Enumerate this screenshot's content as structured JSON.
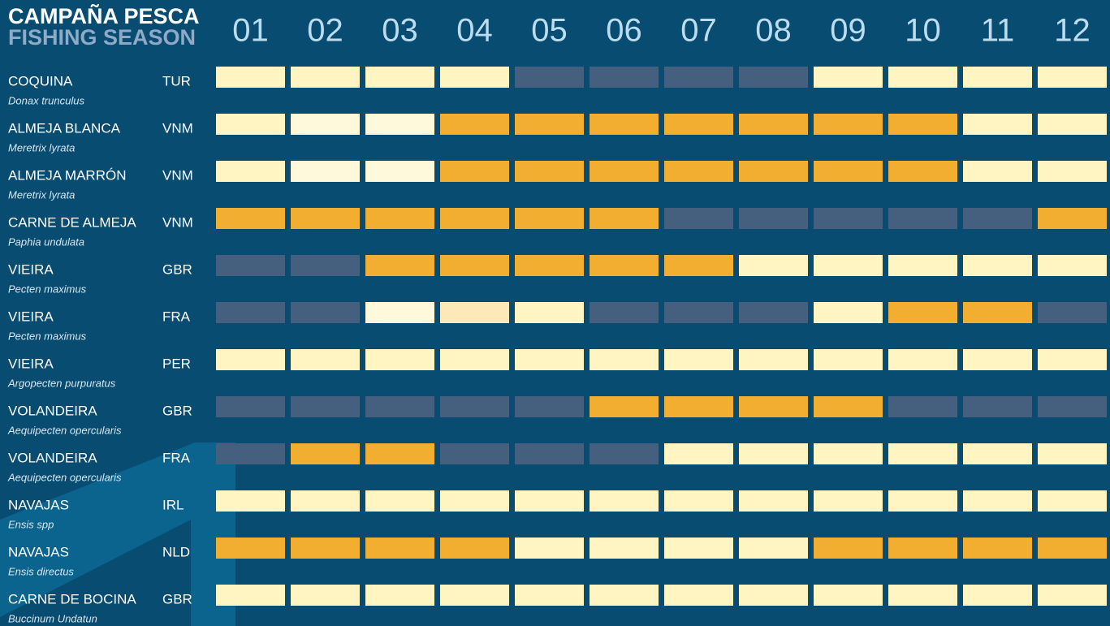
{
  "header": {
    "title": "CAMPAÑA PESCA",
    "subtitle": "FISHING SEASON"
  },
  "months": [
    "01",
    "02",
    "03",
    "04",
    "05",
    "06",
    "07",
    "08",
    "09",
    "10",
    "11",
    "12"
  ],
  "rows": [
    {
      "name": "COQUINA",
      "latin": "Donax trunculus",
      "code": "TUR",
      "cells": [
        "#fff5c2",
        "#fff5c2",
        "#fff5c2",
        "#fff5c2",
        "#45607f",
        "#45607f",
        "#45607f",
        "#45607f",
        "#fff5c2",
        "#fff5c2",
        "#fff5c2",
        "#fff5c2"
      ]
    },
    {
      "name": "ALMEJA BLANCA",
      "latin": "Meretrix lyrata",
      "code": "VNM",
      "cells": [
        "#fff5c2",
        "#fff9dc",
        "#fff9dc",
        "#f1ae30",
        "#f1ae30",
        "#f1ae30",
        "#f1ae30",
        "#f1ae30",
        "#f1ae30",
        "#f1ae30",
        "#fff5c2",
        "#fff5c2"
      ]
    },
    {
      "name": "ALMEJA MARRÓN",
      "latin": "Meretrix lyrata",
      "code": "VNM",
      "cells": [
        "#fff5c2",
        "#fff9dc",
        "#fff9dc",
        "#f1ae30",
        "#f1ae30",
        "#f1ae30",
        "#f1ae30",
        "#f1ae30",
        "#f1ae30",
        "#f1ae30",
        "#fff5c2",
        "#fff5c2"
      ]
    },
    {
      "name": "CARNE DE ALMEJA",
      "latin": "Paphia undulata",
      "code": "VNM",
      "cells": [
        "#f1ae30",
        "#f1ae30",
        "#f1ae30",
        "#f1ae30",
        "#f1ae30",
        "#f1ae30",
        "#45607f",
        "#45607f",
        "#45607f",
        "#45607f",
        "#45607f",
        "#f1ae30"
      ]
    },
    {
      "name": "VIEIRA",
      "latin": "Pecten maximus",
      "code": "GBR",
      "cells": [
        "#45607f",
        "#45607f",
        "#f1ae30",
        "#f1ae30",
        "#f1ae30",
        "#f1ae30",
        "#f1ae30",
        "#fff5c2",
        "#fff5c2",
        "#fff5c2",
        "#fff5c2",
        "#fff5c2"
      ]
    },
    {
      "name": "VIEIRA",
      "latin": "Pecten maximus",
      "code": "FRA",
      "cells": [
        "#45607f",
        "#45607f",
        "#fff9dc",
        "#fde9b8",
        "#fff5c2",
        "#45607f",
        "#45607f",
        "#45607f",
        "#fff5c2",
        "#f1ae30",
        "#f1ae30",
        "#45607f"
      ]
    },
    {
      "name": "VIEIRA",
      "latin": "Argopecten purpuratus",
      "code": "PER",
      "cells": [
        "#fff5c2",
        "#fff5c2",
        "#fff5c2",
        "#fff5c2",
        "#fff5c2",
        "#fff5c2",
        "#fff5c2",
        "#fff5c2",
        "#fff5c2",
        "#fff5c2",
        "#fff5c2",
        "#fff5c2"
      ]
    },
    {
      "name": "VOLANDEIRA",
      "latin": "Aequipecten opercularis",
      "code": "GBR",
      "cells": [
        "#45607f",
        "#45607f",
        "#45607f",
        "#45607f",
        "#45607f",
        "#f1ae30",
        "#f1ae30",
        "#f1ae30",
        "#f1ae30",
        "#45607f",
        "#45607f",
        "#45607f"
      ]
    },
    {
      "name": "VOLANDEIRA",
      "latin": "Aequipecten opercularis",
      "code": "FRA",
      "cells": [
        "#45607f",
        "#f1ae30",
        "#f1ae30",
        "#45607f",
        "#45607f",
        "#45607f",
        "#fff5c2",
        "#fff5c2",
        "#fff5c2",
        "#fff5c2",
        "#fff5c2",
        "#fff5c2"
      ]
    },
    {
      "name": "NAVAJAS",
      "latin": "Ensis spp",
      "code": "IRL",
      "cells": [
        "#fff5c2",
        "#fff5c2",
        "#fff5c2",
        "#fff5c2",
        "#fff5c2",
        "#fff5c2",
        "#fff5c2",
        "#fff5c2",
        "#fff5c2",
        "#fff5c2",
        "#fff5c2",
        "#fff5c2"
      ]
    },
    {
      "name": "NAVAJAS",
      "latin": "Ensis directus",
      "code": "NLD",
      "cells": [
        "#f1ae30",
        "#f1ae30",
        "#f1ae30",
        "#f1ae30",
        "#fff5c2",
        "#fff5c2",
        "#fff5c2",
        "#fff5c2",
        "#f1ae30",
        "#f1ae30",
        "#f1ae30",
        "#f1ae30"
      ]
    },
    {
      "name": "CARNE DE BOCINA",
      "latin": "Buccinum Undatun",
      "code": "GBR",
      "cells": [
        "#fff5c2",
        "#fff5c2",
        "#fff5c2",
        "#fff5c2",
        "#fff5c2",
        "#fff5c2",
        "#fff5c2",
        "#fff5c2",
        "#fff5c2",
        "#fff5c2",
        "#fff5c2",
        "#fff5c2"
      ]
    }
  ]
}
